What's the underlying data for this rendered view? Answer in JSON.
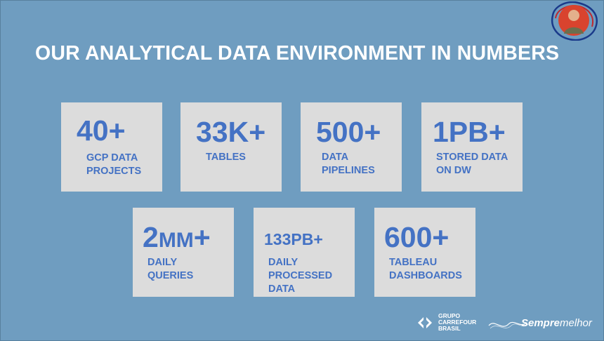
{
  "slide": {
    "title": "OUR ANALYTICAL DATA ENVIRONMENT IN NUMBERS",
    "background_color": "#6f9dc0",
    "accent_color": "#4472c4",
    "card_color": "#dcdcdc"
  },
  "stats": [
    {
      "value": "40+",
      "label": "GCP DATA\nPROJECTS"
    },
    {
      "value": "33K+",
      "label": "TABLES"
    },
    {
      "value": "500+",
      "label": "DATA\nPIPELINES"
    },
    {
      "value": "1PB+",
      "label": "STORED DATA\nON DW"
    },
    {
      "value_main": "2",
      "value_small": "MM",
      "value_suffix": "+",
      "label": "DAILY\nQUERIES"
    },
    {
      "value": "133PB+",
      "label": "DAILY\nPROCESSED\nDATA"
    },
    {
      "value": "600+",
      "label": "TABLEAU\nDASHBOARDS"
    }
  ],
  "footer": {
    "carrefour_text": "GRUPO\nCARREFOUR\nBRASIL",
    "carrefour_icon": "carrefour-logo-icon",
    "sempre_melhor_bold": "Sempre",
    "sempre_melhor_light": "melhor",
    "sempre_icon": "sempre-melhor-logo-icon"
  },
  "presenter": {
    "icon": "presenter-avatar"
  }
}
